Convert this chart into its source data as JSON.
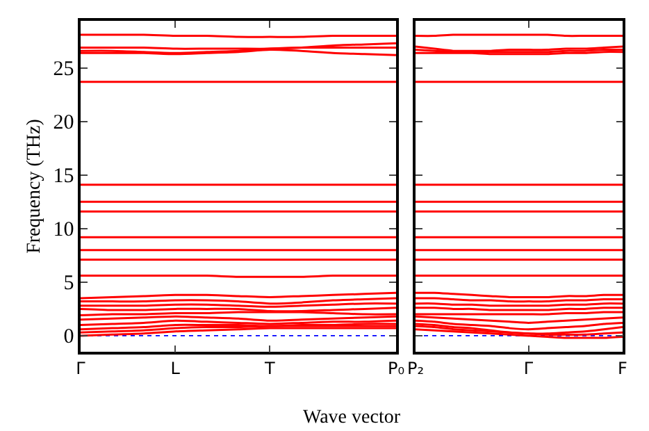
{
  "chart_data": [
    {
      "type": "line",
      "ylabel": "Frequency (THz)",
      "xlabel": "Wave vector",
      "ylim": [
        -1.5,
        29.4
      ],
      "categories": [
        "Γ",
        null,
        null,
        "L",
        null,
        null,
        "T",
        null,
        null,
        null,
        "P₀"
      ],
      "yticks": [
        0,
        5,
        10,
        15,
        20,
        25
      ],
      "grid": false,
      "marker": "none",
      "line_style": "solid",
      "ref_lines": [
        {
          "axis": "y",
          "value": 0,
          "color": "#0000ff",
          "line_style": "dotted"
        }
      ],
      "series": [
        {
          "color": "#ff0000",
          "values": [
            28.1,
            28.1,
            28.1,
            28.0,
            28.0,
            27.9,
            27.9,
            27.9,
            28.0,
            28.0,
            28.0
          ]
        },
        {
          "color": "#ff0000",
          "values": [
            26.9,
            26.9,
            26.9,
            26.8,
            26.8,
            26.8,
            26.8,
            26.9,
            27.1,
            27.2,
            27.3
          ]
        },
        {
          "color": "#ff0000",
          "values": [
            26.6,
            26.6,
            26.5,
            26.4,
            26.5,
            26.6,
            26.8,
            26.9,
            26.9,
            26.9,
            26.9
          ]
        },
        {
          "color": "#ff0000",
          "values": [
            26.4,
            26.4,
            26.4,
            26.3,
            26.4,
            26.5,
            26.7,
            26.6,
            26.4,
            26.3,
            26.2
          ]
        },
        {
          "color": "#ff0000",
          "values": [
            23.7,
            23.7,
            23.7,
            23.7,
            23.7,
            23.7,
            23.7,
            23.7,
            23.7,
            23.7,
            23.7
          ]
        },
        {
          "color": "#ff0000",
          "values": [
            14.1,
            14.1,
            14.1,
            14.1,
            14.1,
            14.1,
            14.1,
            14.1,
            14.1,
            14.1,
            14.1
          ]
        },
        {
          "color": "#ff0000",
          "values": [
            12.5,
            12.5,
            12.5,
            12.5,
            12.5,
            12.5,
            12.5,
            12.5,
            12.5,
            12.5,
            12.5
          ]
        },
        {
          "color": "#ff0000",
          "values": [
            11.6,
            11.6,
            11.6,
            11.6,
            11.6,
            11.6,
            11.6,
            11.6,
            11.6,
            11.6,
            11.6
          ]
        },
        {
          "color": "#ff0000",
          "values": [
            9.2,
            9.2,
            9.2,
            9.2,
            9.2,
            9.2,
            9.2,
            9.2,
            9.2,
            9.2,
            9.2
          ]
        },
        {
          "color": "#ff0000",
          "values": [
            8.0,
            8.0,
            8.0,
            8.0,
            8.0,
            8.0,
            8.0,
            8.0,
            8.0,
            8.0,
            8.0
          ]
        },
        {
          "color": "#ff0000",
          "values": [
            7.1,
            7.1,
            7.1,
            7.1,
            7.1,
            7.1,
            7.1,
            7.1,
            7.1,
            7.1,
            7.1
          ]
        },
        {
          "color": "#ff0000",
          "values": [
            5.6,
            5.6,
            5.6,
            5.6,
            5.6,
            5.5,
            5.5,
            5.5,
            5.6,
            5.6,
            5.6
          ]
        },
        {
          "color": "#ff0000",
          "values": [
            3.5,
            3.6,
            3.7,
            3.8,
            3.8,
            3.7,
            3.6,
            3.7,
            3.8,
            3.9,
            4.0
          ]
        },
        {
          "color": "#ff0000",
          "values": [
            3.2,
            3.2,
            3.2,
            3.3,
            3.3,
            3.2,
            3.0,
            3.1,
            3.3,
            3.4,
            3.5
          ]
        },
        {
          "color": "#ff0000",
          "values": [
            2.8,
            2.8,
            2.8,
            2.9,
            2.9,
            2.8,
            2.7,
            2.8,
            2.9,
            3.0,
            3.0
          ]
        },
        {
          "color": "#ff0000",
          "values": [
            2.5,
            2.4,
            2.4,
            2.5,
            2.5,
            2.5,
            2.3,
            2.3,
            2.4,
            2.5,
            2.6
          ]
        },
        {
          "color": "#ff0000",
          "values": [
            1.9,
            2.0,
            2.0,
            2.1,
            2.1,
            2.2,
            2.2,
            2.2,
            2.1,
            2.0,
            2.0
          ]
        },
        {
          "color": "#ff0000",
          "values": [
            1.5,
            1.6,
            1.7,
            1.8,
            1.7,
            1.6,
            1.4,
            1.5,
            1.6,
            1.7,
            1.8
          ]
        },
        {
          "color": "#ff0000",
          "values": [
            1.0,
            1.1,
            1.2,
            1.4,
            1.3,
            1.2,
            1.1,
            1.2,
            1.3,
            1.3,
            1.4
          ]
        },
        {
          "color": "#ff0000",
          "values": [
            0.6,
            0.7,
            0.8,
            1.0,
            1.0,
            1.0,
            0.9,
            1.0,
            1.0,
            1.1,
            1.1
          ]
        },
        {
          "color": "#ff0000",
          "values": [
            0.3,
            0.4,
            0.5,
            0.7,
            0.8,
            0.8,
            0.9,
            0.9,
            0.9,
            0.9,
            0.9
          ]
        },
        {
          "color": "#ff0000",
          "values": [
            0.0,
            0.1,
            0.2,
            0.4,
            0.5,
            0.6,
            0.7,
            0.7,
            0.7,
            0.7,
            0.7
          ]
        }
      ]
    },
    {
      "type": "line",
      "ylim": [
        -1.5,
        29.4
      ],
      "tick_labels": "x",
      "categories": [
        "P₂",
        null,
        null,
        null,
        null,
        null,
        "Γ",
        null,
        null,
        null,
        null,
        "F"
      ],
      "yticks": [
        0,
        5,
        10,
        15,
        20,
        25
      ],
      "grid": false,
      "marker": "none",
      "line_style": "solid",
      "ref_lines": [
        {
          "axis": "y",
          "value": 0,
          "color": "#0000ff",
          "line_style": "dotted"
        }
      ],
      "series": [
        {
          "color": "#ff0000",
          "values": [
            28.0,
            28.0,
            28.1,
            28.1,
            28.1,
            28.1,
            28.1,
            28.1,
            28.0,
            28.0,
            28.0,
            28.0
          ]
        },
        {
          "color": "#ff0000",
          "values": [
            27.0,
            26.8,
            26.6,
            26.6,
            26.6,
            26.7,
            26.7,
            26.7,
            26.8,
            26.8,
            26.9,
            27.0
          ]
        },
        {
          "color": "#ff0000",
          "values": [
            26.7,
            26.6,
            26.5,
            26.5,
            26.5,
            26.5,
            26.5,
            26.5,
            26.6,
            26.6,
            26.7,
            26.7
          ]
        },
        {
          "color": "#ff0000",
          "values": [
            26.4,
            26.4,
            26.4,
            26.4,
            26.3,
            26.3,
            26.3,
            26.3,
            26.4,
            26.4,
            26.5,
            26.5
          ]
        },
        {
          "color": "#ff0000",
          "values": [
            23.7,
            23.7,
            23.7,
            23.7,
            23.7,
            23.7,
            23.7,
            23.7,
            23.7,
            23.7,
            23.7,
            23.7
          ]
        },
        {
          "color": "#ff0000",
          "values": [
            14.1,
            14.1,
            14.1,
            14.1,
            14.1,
            14.1,
            14.1,
            14.1,
            14.1,
            14.1,
            14.1,
            14.1
          ]
        },
        {
          "color": "#ff0000",
          "values": [
            12.5,
            12.5,
            12.5,
            12.5,
            12.5,
            12.5,
            12.5,
            12.5,
            12.5,
            12.5,
            12.5,
            12.5
          ]
        },
        {
          "color": "#ff0000",
          "values": [
            11.6,
            11.6,
            11.6,
            11.6,
            11.6,
            11.6,
            11.6,
            11.6,
            11.6,
            11.6,
            11.6,
            11.6
          ]
        },
        {
          "color": "#ff0000",
          "values": [
            9.2,
            9.2,
            9.2,
            9.2,
            9.2,
            9.2,
            9.2,
            9.2,
            9.2,
            9.2,
            9.2,
            9.2
          ]
        },
        {
          "color": "#ff0000",
          "values": [
            8.0,
            8.0,
            8.0,
            8.0,
            8.0,
            8.0,
            8.0,
            8.0,
            8.0,
            8.0,
            8.0,
            8.0
          ]
        },
        {
          "color": "#ff0000",
          "values": [
            7.1,
            7.1,
            7.1,
            7.1,
            7.1,
            7.1,
            7.1,
            7.1,
            7.1,
            7.1,
            7.1,
            7.1
          ]
        },
        {
          "color": "#ff0000",
          "values": [
            5.6,
            5.6,
            5.6,
            5.6,
            5.6,
            5.6,
            5.6,
            5.6,
            5.6,
            5.6,
            5.6,
            5.6
          ]
        },
        {
          "color": "#ff0000",
          "values": [
            4.0,
            4.0,
            3.9,
            3.8,
            3.7,
            3.6,
            3.6,
            3.6,
            3.7,
            3.7,
            3.8,
            3.8
          ]
        },
        {
          "color": "#ff0000",
          "values": [
            3.5,
            3.5,
            3.4,
            3.3,
            3.3,
            3.2,
            3.2,
            3.2,
            3.3,
            3.3,
            3.4,
            3.4
          ]
        },
        {
          "color": "#ff0000",
          "values": [
            3.0,
            3.0,
            2.9,
            2.9,
            2.8,
            2.8,
            2.8,
            2.8,
            2.9,
            2.9,
            3.0,
            3.0
          ]
        },
        {
          "color": "#ff0000",
          "values": [
            2.6,
            2.6,
            2.5,
            2.5,
            2.4,
            2.4,
            2.4,
            2.4,
            2.5,
            2.5,
            2.6,
            2.6
          ]
        },
        {
          "color": "#ff0000",
          "values": [
            2.0,
            2.0,
            2.0,
            2.0,
            2.0,
            2.0,
            2.0,
            2.0,
            2.1,
            2.1,
            2.2,
            2.2
          ]
        },
        {
          "color": "#ff0000",
          "values": [
            1.8,
            1.7,
            1.6,
            1.5,
            1.4,
            1.3,
            1.2,
            1.3,
            1.4,
            1.5,
            1.6,
            1.7
          ]
        },
        {
          "color": "#ff0000",
          "values": [
            1.4,
            1.3,
            1.1,
            1.0,
            0.9,
            0.7,
            0.6,
            0.7,
            0.8,
            0.9,
            1.1,
            1.2
          ]
        },
        {
          "color": "#ff0000",
          "values": [
            1.1,
            1.0,
            0.8,
            0.7,
            0.5,
            0.3,
            0.2,
            0.2,
            0.3,
            0.4,
            0.6,
            0.8
          ]
        },
        {
          "color": "#ff0000",
          "values": [
            0.9,
            0.8,
            0.6,
            0.5,
            0.4,
            0.3,
            0.2,
            0.1,
            0.1,
            0.1,
            0.2,
            0.3
          ]
        },
        {
          "color": "#ff0000",
          "values": [
            0.6,
            0.5,
            0.4,
            0.3,
            0.2,
            0.1,
            0.0,
            -0.1,
            -0.2,
            -0.2,
            -0.2,
            -0.1
          ]
        }
      ]
    }
  ]
}
